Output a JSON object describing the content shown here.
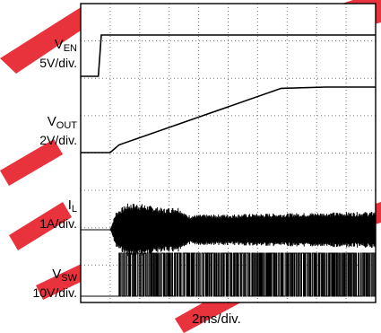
{
  "chart_data": {
    "type": "line",
    "title": "",
    "xlabel": "2ms/div.",
    "grid": true,
    "divisions": {
      "x": 10,
      "y": 8
    },
    "series": [
      {
        "symbol": "V",
        "subscript": "EN",
        "scale": "5V/div.",
        "x": [
          0,
          0.6,
          0.7,
          0.8,
          10
        ],
        "y": [
          0,
          0,
          5.2,
          5.2,
          5.2
        ]
      },
      {
        "symbol": "V",
        "subscript": "OUT",
        "scale": "2V/div.",
        "x": [
          0,
          1.0,
          1.3,
          6.8,
          8.3,
          10
        ],
        "y": [
          0,
          0,
          0.6,
          5.0,
          5.1,
          5.1
        ]
      },
      {
        "symbol": "I",
        "subscript": "L",
        "scale": "1A/div.",
        "x": [
          0,
          1.0,
          1.2,
          1.6,
          2.0,
          2.8,
          3.3,
          3.6,
          10
        ],
        "y": [
          0,
          0,
          1.1,
          1.6,
          1.6,
          1.3,
          1.4,
          0.9,
          1.1
        ]
      },
      {
        "symbol": "V",
        "subscript": "SW",
        "scale": "10V/div.",
        "x": [
          0,
          1.0,
          1.3,
          10
        ],
        "y": [
          0,
          0,
          13,
          13
        ]
      }
    ]
  },
  "colors": {
    "trace": "#000000",
    "grid": "#777777",
    "watermark": "#e8323c"
  }
}
